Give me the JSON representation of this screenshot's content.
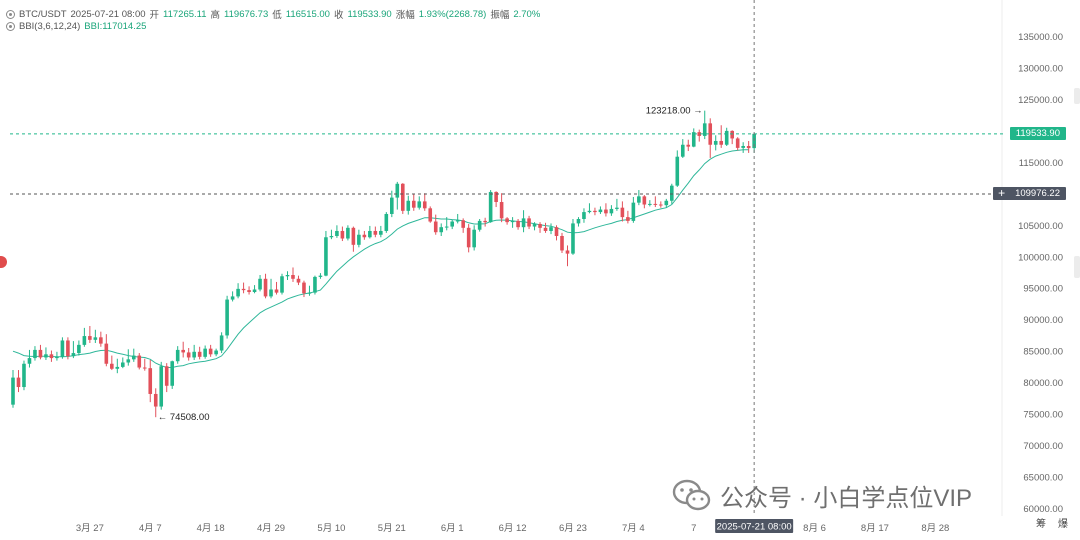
{
  "header": {
    "symbol": "BTC/USDT",
    "datetime": "2025-07-21 08:00",
    "open_label": "开",
    "open": "117265.11",
    "high_label": "高",
    "high": "119676.73",
    "low_label": "低",
    "low": "116515.00",
    "close_label": "收",
    "close": "119533.90",
    "change_label": "涨幅",
    "change": "1.93%(2268.78)",
    "amp_label": "振幅",
    "amp": "2.70%"
  },
  "indicator": {
    "name": "BBI(3,6,12,24)",
    "value": "BBI:117014.25"
  },
  "colors": {
    "up": "#21b68a",
    "down": "#e2505a",
    "bbi": "#2fb79a",
    "current_price_bg": "#21b68a",
    "cursor_price_bg": "#4e5563"
  },
  "price_labels": {
    "current": "119533.90",
    "cursor": "109976.22"
  },
  "cursor_date": "2025-07-21 08:00",
  "annotations": {
    "high": "123218.00 →",
    "low": "← 74508.00"
  },
  "watermark": "公众号 · 小白学点位VIP",
  "corner_labels": [
    "筹",
    "爆"
  ],
  "chart_data": {
    "type": "candlestick",
    "y_axis": [
      "135000.00",
      "130000.00",
      "125000.00",
      "120000.00",
      "115000.00",
      "110000.00",
      "105000.00",
      "100000.00",
      "95000.00",
      "90000.00",
      "85000.00",
      "80000.00",
      "75000.00",
      "70000.00",
      "65000.00",
      "60000.00"
    ],
    "ylim": [
      60000,
      137500
    ],
    "x_axis": [
      {
        "label": "3月 27",
        "i": 14
      },
      {
        "label": "4月 7",
        "i": 25
      },
      {
        "label": "4月 18",
        "i": 36
      },
      {
        "label": "4月 29",
        "i": 47
      },
      {
        "label": "5月 10",
        "i": 58
      },
      {
        "label": "5月 21",
        "i": 69
      },
      {
        "label": "6月 1",
        "i": 80
      },
      {
        "label": "6月 12",
        "i": 91
      },
      {
        "label": "6月 23",
        "i": 102
      },
      {
        "label": "7月 4",
        "i": 113
      },
      {
        "label": "7",
        "i": 124
      },
      {
        "label": "8月 6",
        "i": 146
      },
      {
        "label": "8月 17",
        "i": 157
      },
      {
        "label": "8月 28",
        "i": 168
      }
    ],
    "candles": [
      [
        76500,
        80800,
        76000,
        82000
      ],
      [
        80800,
        79300,
        78500,
        82000
      ],
      [
        79300,
        83000,
        78800,
        83500
      ],
      [
        83000,
        83900,
        82400,
        85200
      ],
      [
        83900,
        85200,
        83500,
        85800
      ],
      [
        85200,
        84000,
        83700,
        86000
      ],
      [
        84000,
        84500,
        83600,
        85600
      ],
      [
        84500,
        83900,
        83300,
        85100
      ],
      [
        83900,
        84100,
        83500,
        84900
      ],
      [
        84100,
        86700,
        83800,
        87200
      ],
      [
        86700,
        84200,
        83700,
        87200
      ],
      [
        84200,
        84700,
        83900,
        86600
      ],
      [
        84700,
        86000,
        84300,
        86700
      ],
      [
        86000,
        87400,
        85700,
        88700
      ],
      [
        87400,
        86800,
        86300,
        89000
      ],
      [
        86800,
        87200,
        86300,
        88400
      ],
      [
        87200,
        86200,
        85700,
        88100
      ],
      [
        86200,
        83000,
        82600,
        87700
      ],
      [
        83000,
        82200,
        82000,
        84300
      ],
      [
        82200,
        82500,
        81500,
        83800
      ],
      [
        82500,
        83200,
        82300,
        84000
      ],
      [
        83200,
        83700,
        82700,
        85300
      ],
      [
        83700,
        84300,
        83300,
        85400
      ],
      [
        84300,
        82400,
        82100,
        84700
      ],
      [
        82400,
        82300,
        81900,
        83800
      ],
      [
        82300,
        78200,
        76900,
        83600
      ],
      [
        78200,
        76200,
        74508,
        79100
      ],
      [
        76200,
        82600,
        75700,
        83300
      ],
      [
        82600,
        79500,
        78500,
        83100
      ],
      [
        79500,
        83400,
        79000,
        83500
      ],
      [
        83400,
        85200,
        83000,
        85800
      ],
      [
        85200,
        84800,
        84000,
        86500
      ],
      [
        84800,
        84000,
        83500,
        85500
      ],
      [
        84000,
        84900,
        83600,
        86000
      ],
      [
        84900,
        84100,
        83700,
        85700
      ],
      [
        84100,
        85400,
        83800,
        85900
      ],
      [
        85400,
        84500,
        84100,
        86000
      ],
      [
        84500,
        85100,
        84200,
        85400
      ],
      [
        85100,
        87500,
        84700,
        88000
      ],
      [
        87500,
        93200,
        87000,
        93800
      ],
      [
        93200,
        93700,
        92900,
        94500
      ],
      [
        93700,
        94900,
        93400,
        95800
      ],
      [
        94900,
        94700,
        94200,
        95900
      ],
      [
        94700,
        94400,
        94000,
        95300
      ],
      [
        94400,
        94800,
        94200,
        95500
      ],
      [
        94800,
        96500,
        94500,
        97100
      ],
      [
        96500,
        93700,
        93400,
        97300
      ],
      [
        93700,
        94800,
        93400,
        96500
      ],
      [
        94800,
        94300,
        94000,
        96000
      ],
      [
        94300,
        96900,
        94000,
        97300
      ],
      [
        96900,
        97100,
        96300,
        97700
      ],
      [
        97100,
        96500,
        96000,
        98300
      ],
      [
        96500,
        95900,
        95500,
        97000
      ],
      [
        95900,
        94200,
        93600,
        96200
      ],
      [
        94200,
        94300,
        93800,
        95400
      ],
      [
        94300,
        96800,
        94000,
        97000
      ],
      [
        96800,
        97000,
        96500,
        97400
      ],
      [
        97000,
        103100,
        96900,
        104100
      ],
      [
        103100,
        103300,
        102800,
        104300
      ],
      [
        103300,
        104100,
        103000,
        105000
      ],
      [
        104100,
        102900,
        102500,
        104800
      ],
      [
        102900,
        104600,
        102600,
        105000
      ],
      [
        104600,
        101900,
        100800,
        104800
      ],
      [
        101900,
        103500,
        101500,
        104300
      ],
      [
        103500,
        103100,
        102700,
        104100
      ],
      [
        103100,
        104100,
        102900,
        104900
      ],
      [
        104100,
        103500,
        103100,
        104800
      ],
      [
        103500,
        104100,
        103100,
        104900
      ],
      [
        104100,
        106800,
        103800,
        107100
      ],
      [
        106800,
        109400,
        106300,
        110500
      ],
      [
        109400,
        111600,
        107500,
        111900
      ],
      [
        111600,
        107300,
        106800,
        111700
      ],
      [
        107300,
        108900,
        106700,
        109700
      ],
      [
        108900,
        107800,
        107300,
        110000
      ],
      [
        107800,
        108800,
        107500,
        109600
      ],
      [
        108800,
        107700,
        107300,
        110100
      ],
      [
        107700,
        105600,
        105400,
        108000
      ],
      [
        105600,
        103900,
        103500,
        106700
      ],
      [
        103900,
        104700,
        103300,
        105300
      ],
      [
        104700,
        104800,
        104200,
        106300
      ],
      [
        104800,
        105600,
        104400,
        105900
      ],
      [
        105600,
        105800,
        105300,
        106800
      ],
      [
        105800,
        104600,
        103800,
        106100
      ],
      [
        104600,
        101500,
        100700,
        105200
      ],
      [
        101500,
        104300,
        101000,
        105000
      ],
      [
        104300,
        105700,
        104000,
        106000
      ],
      [
        105700,
        105500,
        104800,
        106200
      ],
      [
        105500,
        110300,
        105400,
        110600
      ],
      [
        110300,
        108700,
        107900,
        110400
      ],
      [
        108700,
        106100,
        105500,
        110100
      ],
      [
        106100,
        105500,
        105100,
        106300
      ],
      [
        105500,
        105700,
        104600,
        106300
      ],
      [
        105700,
        104700,
        104300,
        106000
      ],
      [
        104700,
        106100,
        103900,
        107400
      ],
      [
        106100,
        104800,
        104400,
        106500
      ],
      [
        104800,
        105200,
        104200,
        105500
      ],
      [
        105200,
        104600,
        103800,
        105500
      ],
      [
        104600,
        104100,
        103800,
        105400
      ],
      [
        104100,
        104700,
        103600,
        105300
      ],
      [
        104700,
        103300,
        102600,
        105000
      ],
      [
        103300,
        101000,
        100600,
        103800
      ],
      [
        101000,
        100500,
        98500,
        101800
      ],
      [
        100500,
        105300,
        100300,
        106000
      ],
      [
        105300,
        106000,
        104800,
        106300
      ],
      [
        106000,
        107100,
        105400,
        107700
      ],
      [
        107100,
        107300,
        106900,
        108500
      ],
      [
        107300,
        107100,
        106600,
        107800
      ],
      [
        107100,
        107500,
        106800,
        108000
      ],
      [
        107500,
        106900,
        106400,
        108500
      ],
      [
        106900,
        107600,
        106500,
        108200
      ],
      [
        107600,
        107800,
        107300,
        109200
      ],
      [
        107800,
        106300,
        105600,
        108800
      ],
      [
        106300,
        105700,
        105300,
        107300
      ],
      [
        105700,
        108600,
        105400,
        109500
      ],
      [
        108600,
        109600,
        108200,
        110600
      ],
      [
        109600,
        108300,
        107700,
        109800
      ],
      [
        108300,
        108400,
        108000,
        109000
      ],
      [
        108400,
        108300,
        107900,
        109600
      ],
      [
        108300,
        108200,
        107800,
        108800
      ],
      [
        108200,
        108900,
        107800,
        109200
      ],
      [
        108900,
        111300,
        108400,
        111600
      ],
      [
        111300,
        115900,
        111100,
        116900
      ],
      [
        115900,
        117800,
        115700,
        118700
      ],
      [
        117800,
        117500,
        116800,
        118600
      ],
      [
        117500,
        119800,
        117400,
        120400
      ],
      [
        119800,
        119200,
        118300,
        120200
      ],
      [
        119200,
        121200,
        118700,
        123218
      ],
      [
        121200,
        117800,
        115700,
        122000
      ],
      [
        117800,
        118400,
        116900,
        119300
      ],
      [
        118400,
        117800,
        117300,
        120900
      ],
      [
        117800,
        120000,
        117600,
        120500
      ],
      [
        120000,
        118800,
        117900,
        120100
      ],
      [
        118800,
        117300,
        116900,
        119000
      ],
      [
        117300,
        117600,
        116500,
        118200
      ],
      [
        117600,
        117265,
        116500,
        118400
      ],
      [
        117265,
        119534,
        116515,
        119677
      ]
    ],
    "bbi": [
      85000,
      84700,
      84300,
      84200,
      84150,
      84200,
      84200,
      84150,
      84100,
      84100,
      84150,
      84300,
      84450,
      84550,
      84700,
      84950,
      85100,
      85150,
      84950,
      84700,
      84500,
      84300,
      84150,
      84050,
      84000,
      83700,
      83100,
      82700,
      82400,
      82400,
      82600,
      82700,
      83000,
      83150,
      83300,
      83400,
      83600,
      83800,
      84250,
      85300,
      86500,
      87700,
      88700,
      89500,
      90300,
      91100,
      91600,
      92000,
      92400,
      92800,
      93300,
      93600,
      93900,
      94100,
      94250,
      94450,
      94700,
      95650,
      96700,
      97700,
      98500,
      99300,
      100000,
      100600,
      101200,
      101700,
      102100,
      102400,
      102900,
      103600,
      104400,
      104900,
      105300,
      105600,
      105900,
      106200,
      106200,
      106100,
      106000,
      106000,
      105900,
      105850,
      105700,
      105400,
      105200,
      105200,
      105250,
      105600,
      105800,
      105850,
      105800,
      105700,
      105600,
      105550,
      105400,
      105250,
      105100,
      104950,
      104850,
      104600,
      104300,
      103900,
      103800,
      103850,
      104000,
      104300,
      104600,
      104850,
      105100,
      105300,
      105600,
      105800,
      105900,
      106200,
      106500,
      106800,
      107100,
      107400,
      107600,
      107800,
      108300,
      109400,
      110600,
      111700,
      112900,
      113800,
      114800,
      115500,
      116000,
      116300,
      116600,
      116800,
      116900,
      117000,
      117014
    ]
  }
}
